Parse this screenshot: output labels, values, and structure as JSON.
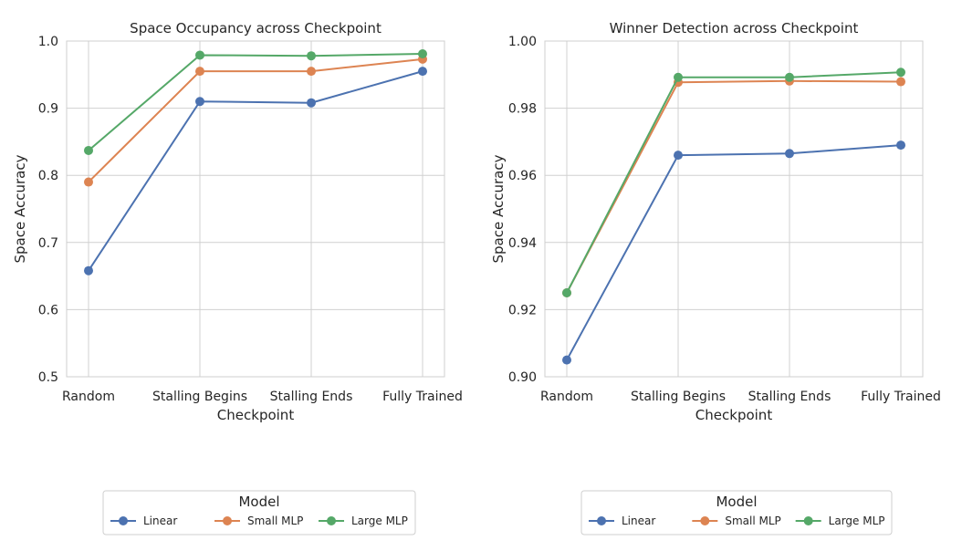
{
  "chart_data": [
    {
      "type": "line",
      "title": "Space Occupancy across Checkpoint",
      "xlabel": "Checkpoint",
      "ylabel": "Space Accuracy",
      "categories": [
        "Random",
        "Stalling Begins",
        "Stalling Ends",
        "Fully Trained"
      ],
      "ylim": [
        0.5,
        1.0
      ],
      "yticks": [
        "0.5",
        "0.6",
        "0.7",
        "0.8",
        "0.9",
        "1.0"
      ],
      "grid": true,
      "legend_title": "Model",
      "legend_position": "bottom",
      "series": [
        {
          "name": "Linear",
          "color": "#4c72b0",
          "values": [
            0.658,
            0.91,
            0.908,
            0.955
          ]
        },
        {
          "name": "Small MLP",
          "color": "#dd8452",
          "values": [
            0.79,
            0.955,
            0.955,
            0.973
          ]
        },
        {
          "name": "Large MLP",
          "color": "#55a868",
          "values": [
            0.837,
            0.979,
            0.978,
            0.981
          ]
        }
      ]
    },
    {
      "type": "line",
      "title": "Winner Detection across Checkpoint",
      "xlabel": "Checkpoint",
      "ylabel": "Space Accuracy",
      "categories": [
        "Random",
        "Stalling Begins",
        "Stalling Ends",
        "Fully Trained"
      ],
      "ylim": [
        0.9,
        1.0
      ],
      "yticks": [
        "0.90",
        "0.92",
        "0.94",
        "0.96",
        "0.98",
        "1.00"
      ],
      "grid": true,
      "legend_title": "Model",
      "legend_position": "bottom",
      "series": [
        {
          "name": "Linear",
          "color": "#4c72b0",
          "values": [
            0.905,
            0.966,
            0.9665,
            0.969
          ]
        },
        {
          "name": "Small MLP",
          "color": "#dd8452",
          "values": [
            0.925,
            0.9877,
            0.9881,
            0.9879
          ]
        },
        {
          "name": "Large MLP",
          "color": "#55a868",
          "values": [
            0.925,
            0.9892,
            0.9892,
            0.9907
          ]
        }
      ]
    }
  ]
}
